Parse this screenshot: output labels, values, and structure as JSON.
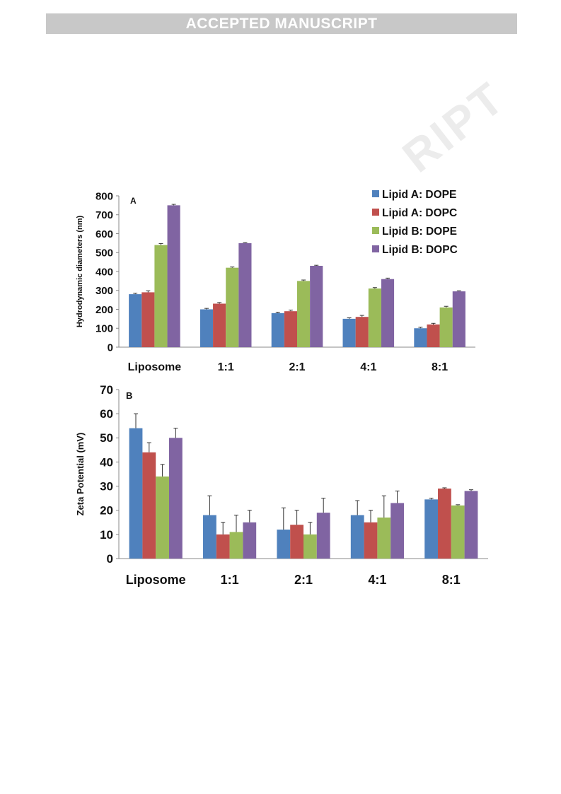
{
  "header": {
    "banner": "ACCEPTED MANUSCRIPT"
  },
  "watermark": {
    "text": "ACCEPTED MANUSCRIPT",
    "visible_fragment": "RIPT"
  },
  "colors": {
    "lipidA_DOPE": "#4f81bd",
    "lipidA_DOPC": "#c0504d",
    "lipidB_DOPE": "#9bbb59",
    "lipidB_DOPC": "#8064a2"
  },
  "chart_data": [
    {
      "type": "bar",
      "panel_label": "A",
      "title": "",
      "xlabel": "",
      "ylabel": "Hydrodynamic diameters (nm)",
      "ylim": [
        0,
        800
      ],
      "yticks": [
        0,
        100,
        200,
        300,
        400,
        500,
        600,
        700,
        800
      ],
      "categories": [
        "Liposome",
        "1:1",
        "2:1",
        "4:1",
        "8:1"
      ],
      "legend_position": "top-right",
      "grid": false,
      "series": [
        {
          "name": "Lipid A: DOPE",
          "color": "#4f81bd",
          "values": [
            280,
            200,
            180,
            150,
            100
          ],
          "errors": [
            5,
            5,
            5,
            5,
            5
          ]
        },
        {
          "name": "Lipid A:  DOPC",
          "color": "#c0504d",
          "values": [
            290,
            230,
            190,
            160,
            120
          ],
          "errors": [
            8,
            6,
            6,
            8,
            6
          ]
        },
        {
          "name": "Lipid B: DOPE",
          "color": "#9bbb59",
          "values": [
            540,
            420,
            350,
            310,
            210
          ],
          "errors": [
            8,
            4,
            5,
            5,
            6
          ]
        },
        {
          "name": "Lipid B: DOPC",
          "color": "#8064a2",
          "values": [
            750,
            550,
            430,
            360,
            295
          ],
          "errors": [
            5,
            3,
            3,
            5,
            3
          ]
        }
      ]
    },
    {
      "type": "bar",
      "panel_label": "B",
      "title": "",
      "xlabel": "",
      "ylabel": "Zeta Potential (mV)",
      "ylim": [
        0,
        70
      ],
      "yticks": [
        0,
        10,
        20,
        30,
        40,
        50,
        60,
        70
      ],
      "categories": [
        "Liposome",
        "1:1",
        "2:1",
        "4:1",
        "8:1"
      ],
      "grid": false,
      "series": [
        {
          "name": "Lipid A: DOPE",
          "color": "#4f81bd",
          "values": [
            54,
            18,
            12,
            18,
            24.5
          ],
          "errors": [
            6,
            8,
            9,
            6,
            0.5
          ]
        },
        {
          "name": "Lipid A:  DOPC",
          "color": "#c0504d",
          "values": [
            44,
            10,
            14,
            15,
            29
          ],
          "errors": [
            4,
            5,
            6,
            5,
            0.3
          ]
        },
        {
          "name": "Lipid B: DOPE",
          "color": "#9bbb59",
          "values": [
            34,
            11,
            10,
            17,
            22
          ],
          "errors": [
            5,
            7,
            5,
            9,
            0.3
          ]
        },
        {
          "name": "Lipid B: DOPC",
          "color": "#8064a2",
          "values": [
            50,
            15,
            19,
            23,
            28
          ],
          "errors": [
            4,
            5,
            6,
            5,
            0.5
          ]
        }
      ]
    }
  ]
}
